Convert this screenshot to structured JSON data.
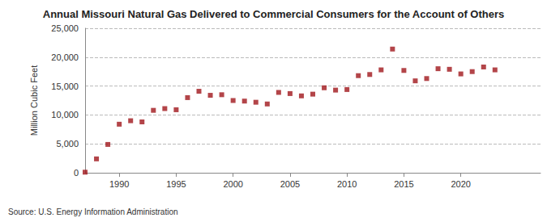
{
  "chart_data": {
    "type": "scatter",
    "title": "Annual Missouri Natural Gas Delivered to Commercial Consumers for the Account of Others",
    "y_label": "Million Cubic Feet",
    "source": "Source: U.S. Energy Information Administration",
    "x": [
      1987,
      1988,
      1989,
      1990,
      1991,
      1992,
      1993,
      1994,
      1995,
      1996,
      1997,
      1998,
      1999,
      2000,
      2001,
      2002,
      2003,
      2004,
      2005,
      2006,
      2007,
      2008,
      2009,
      2010,
      2011,
      2012,
      2013,
      2014,
      2015,
      2016,
      2017,
      2018,
      2019,
      2020,
      2021,
      2022,
      2023
    ],
    "values": [
      100,
      2400,
      4900,
      8400,
      9000,
      8800,
      10800,
      11100,
      10900,
      13000,
      14100,
      13400,
      13500,
      12500,
      12400,
      12200,
      11900,
      13900,
      13700,
      13300,
      13600,
      14700,
      14300,
      14400,
      16800,
      17000,
      17800,
      21400,
      17700,
      15900,
      16300,
      18000,
      17900,
      17100,
      17500,
      18300,
      17800
    ],
    "color": "#a0171b",
    "marker": "square",
    "xlim": [
      1987,
      2027
    ],
    "xticks": [
      1990,
      1995,
      2000,
      2005,
      2010,
      2015,
      2020
    ],
    "ylim": [
      0,
      25000
    ],
    "yticks": [
      0,
      {
        "value": 5000,
        "label": "5,000"
      },
      {
        "value": 10000,
        "label": "10,000"
      },
      {
        "value": 15000,
        "label": "15,000"
      },
      {
        "value": 20000,
        "label": "20,000"
      },
      {
        "value": 25000,
        "label": "25,000"
      }
    ],
    "grid": true
  }
}
